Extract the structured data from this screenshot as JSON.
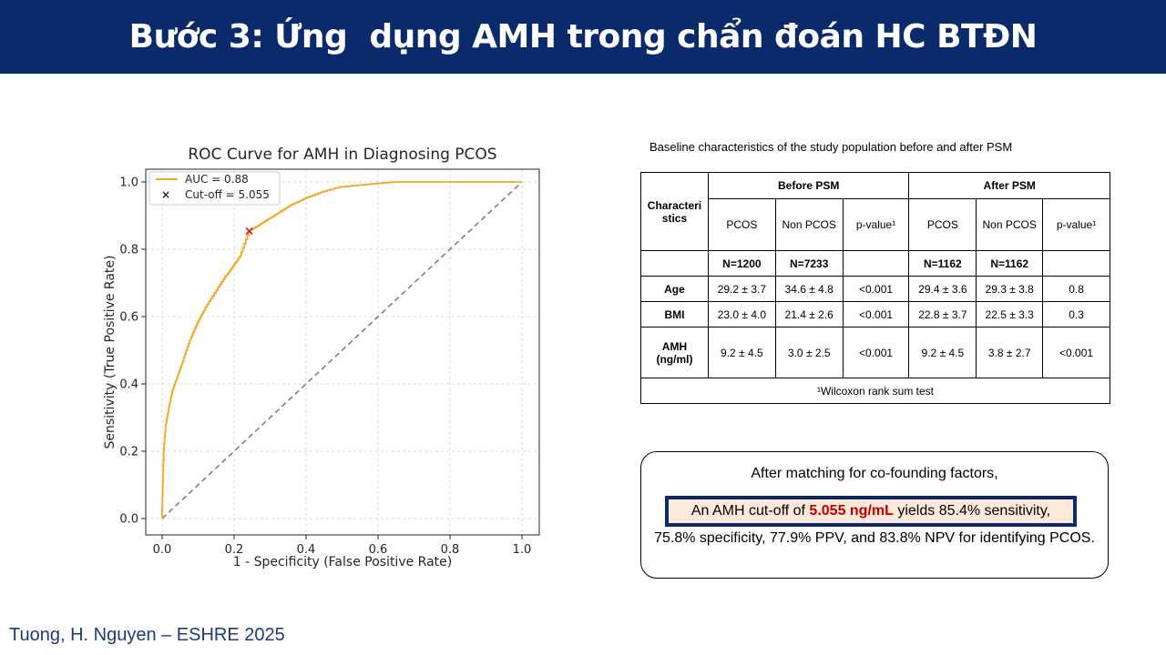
{
  "slide": {
    "title": "Bước 3: Ứng  dụng AMH trong chẩn đoán HC BTĐN",
    "footer": "Tuong, H. Nguyen – ESHRE 2025",
    "colors": {
      "header_bg": "#0a2a6b",
      "roc_curve": "#f5a623",
      "cutoff_marker": "#d62728",
      "highlight_value": "#c00000"
    }
  },
  "chart_data": {
    "type": "line",
    "title": "ROC Curve for AMH in Diagnosing PCOS",
    "xlabel": "1 - Specificity (False Positive Rate)",
    "ylabel": "Sensitivity (True Positive Rate)",
    "xlim": [
      0.0,
      1.0
    ],
    "ylim": [
      0.0,
      1.0
    ],
    "xticks": [
      "0.0",
      "0.2",
      "0.4",
      "0.6",
      "0.8",
      "1.0"
    ],
    "yticks": [
      "0.0",
      "0.2",
      "0.4",
      "0.6",
      "0.8",
      "1.0"
    ],
    "grid": true,
    "legend_position": "top-left",
    "series": [
      {
        "name": "AUC = 0.88",
        "x": [
          0,
          0.005,
          0.01,
          0.02,
          0.03,
          0.04,
          0.05,
          0.06,
          0.08,
          0.1,
          0.12,
          0.15,
          0.18,
          0.2,
          0.22,
          0.245,
          0.27,
          0.3,
          0.33,
          0.36,
          0.4,
          0.45,
          0.5,
          0.55,
          0.6,
          0.65,
          0.7,
          0.8,
          0.9,
          1.0
        ],
        "y": [
          0,
          0.2,
          0.27,
          0.33,
          0.38,
          0.41,
          0.44,
          0.47,
          0.53,
          0.58,
          0.62,
          0.67,
          0.72,
          0.75,
          0.78,
          0.854,
          0.87,
          0.89,
          0.91,
          0.93,
          0.95,
          0.97,
          0.985,
          0.99,
          0.995,
          1.0,
          1.0,
          1.0,
          1.0,
          1.0
        ]
      },
      {
        "name": "",
        "style": "dashed",
        "x": [
          0,
          1
        ],
        "y": [
          0,
          1
        ]
      }
    ],
    "markers": [
      {
        "name": "Cut-off = 5.055",
        "x": 0.242,
        "y": 0.854,
        "symbol": "x"
      }
    ]
  },
  "table": {
    "caption": "Baseline characteristics of the study population before and after PSM",
    "col_header": "Characteri stics",
    "group_before": "Before PSM",
    "group_after": "After PSM",
    "sub_headers": [
      "PCOS",
      "Non PCOS",
      "p-value¹",
      "PCOS",
      "Non PCOS",
      "p-value¹"
    ],
    "n_row": [
      "N=1200",
      "N=7233",
      "",
      "N=1162",
      "N=1162",
      ""
    ],
    "rows": [
      {
        "label": "Age",
        "values": [
          "29.2 ± 3.7",
          "34.6 ± 4.8",
          "<0.001",
          "29.4 ± 3.6",
          "29.3 ± 3.8",
          "0.8"
        ]
      },
      {
        "label": "BMI",
        "values": [
          "23.0 ± 4.0",
          "21.4 ± 2.6",
          "<0.001",
          "22.8 ± 3.7",
          "22.5 ± 3.3",
          "0.3"
        ]
      },
      {
        "label": "AMH (ng/ml)",
        "values": [
          "9.2 ± 4.5",
          "3.0 ± 2.5",
          "<0.001",
          "9.2 ± 4.5",
          "3.8 ± 2.7",
          "<0.001"
        ]
      }
    ],
    "footnote": "¹Wilcoxon rank sum test"
  },
  "summary": {
    "line1": "After matching for co-founding factors,",
    "hl_pre": "An AMH cut-off of ",
    "hl_value": "5.055 ng/mL",
    "hl_post": " yields 85.4% sensitivity,",
    "line3": "75.8% specificity,  77.9% PPV, and 83.8% NPV for identifying PCOS."
  }
}
